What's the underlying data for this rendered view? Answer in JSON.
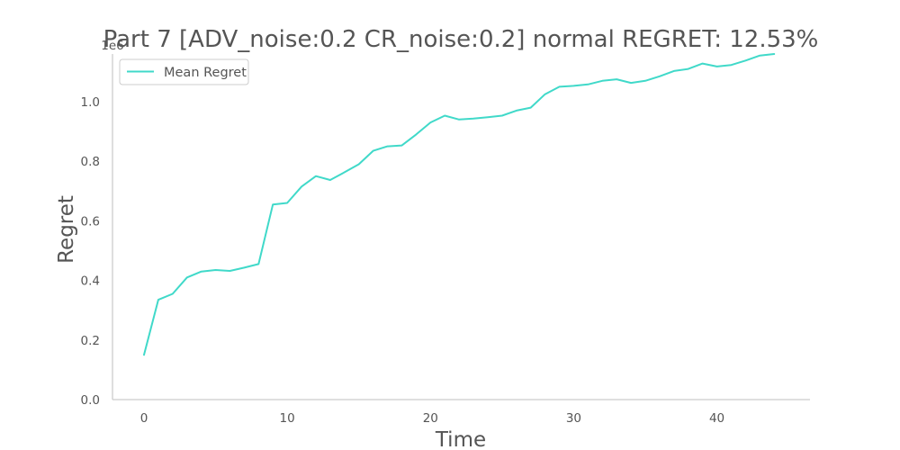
{
  "chart_data": {
    "type": "line",
    "title": "Part 7 [ADV_noise:0.2 CR_noise:0.2] normal REGRET: 12.53%",
    "xlabel": "Time",
    "ylabel": "Regret",
    "y_offset_label": "1e6",
    "xlim": [
      -2.2,
      46.5
    ],
    "ylim": [
      0,
      1.16
    ],
    "x_ticks": [
      0,
      10,
      20,
      30,
      40
    ],
    "y_ticks": [
      0.0,
      0.2,
      0.4,
      0.6,
      0.8,
      1.0
    ],
    "y_tick_labels": [
      "0.0",
      "0.2",
      "0.4",
      "0.6",
      "0.8",
      "1.0"
    ],
    "grid": false,
    "legend_position": "upper-left",
    "series": [
      {
        "name": "Mean Regret",
        "color": "#40d9c9",
        "x": [
          0,
          1,
          2,
          3,
          4,
          5,
          6,
          7,
          8,
          9,
          10,
          11,
          12,
          13,
          14,
          15,
          16,
          17,
          18,
          19,
          20,
          21,
          22,
          23,
          24,
          25,
          26,
          27,
          28,
          29,
          30,
          31,
          32,
          33,
          34,
          35,
          36,
          37,
          38,
          39,
          40,
          41,
          42,
          43,
          44
        ],
        "values": [
          0.15,
          0.335,
          0.355,
          0.41,
          0.43,
          0.435,
          0.432,
          0.443,
          0.455,
          0.655,
          0.66,
          0.715,
          0.75,
          0.737,
          0.763,
          0.79,
          0.835,
          0.85,
          0.853,
          0.89,
          0.93,
          0.953,
          0.94,
          0.943,
          0.948,
          0.953,
          0.97,
          0.98,
          1.025,
          1.05,
          1.053,
          1.058,
          1.07,
          1.075,
          1.063,
          1.07,
          1.085,
          1.103,
          1.11,
          1.128,
          1.118,
          1.123,
          1.138,
          1.155,
          1.16
        ]
      }
    ]
  }
}
